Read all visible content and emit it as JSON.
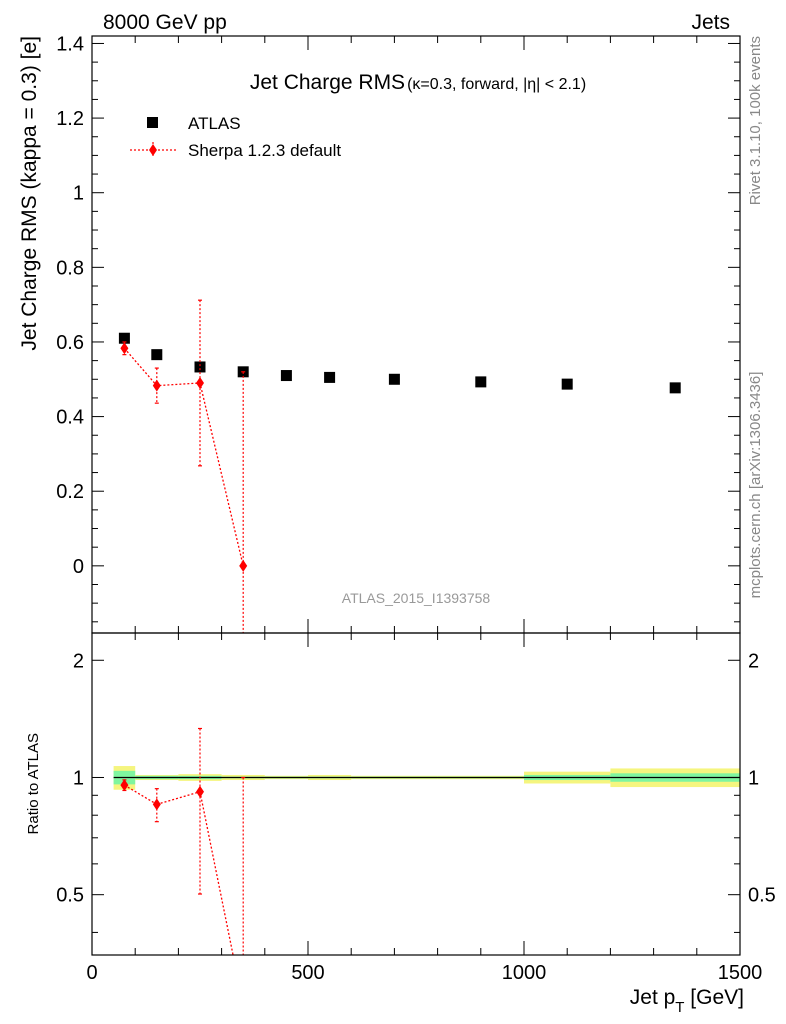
{
  "header": {
    "left": "8000 GeV pp",
    "right": "Jets"
  },
  "side_labels": {
    "rivet": "Rivet 3.1.10,  100k events",
    "mcplots": "mcplots.cern.ch [arXiv:1306.3436]"
  },
  "title_main": "Jet Charge RMS",
  "title_sub": "(κ=0.3, forward, |η| < 2.1)",
  "analysis_id": "ATLAS_2015_I1393758",
  "legend": {
    "atlas": "ATLAS",
    "sherpa": "Sherpa 1.2.3 default"
  },
  "colors": {
    "data": "#000000",
    "mc": "#ff0000",
    "band_green": "#7ff59f",
    "band_yellow": "#f5f57f"
  },
  "chart_data": [
    {
      "type": "scatter",
      "panel": "main",
      "ylabel": "Jet Charge RMS (kappa = 0.3) [e]",
      "xlim": [
        0,
        1500
      ],
      "ylim": [
        -0.18,
        1.42
      ],
      "y_ticks": [
        0,
        0.2,
        0.4,
        0.6,
        0.8,
        1,
        1.2,
        1.4
      ],
      "y_tick_labels": [
        "0",
        "0.2",
        "0.4",
        "0.6",
        "0.8",
        "1",
        "1.2",
        "1.4"
      ],
      "series": [
        {
          "name": "ATLAS",
          "x": [
            75,
            150,
            250,
            350,
            450,
            550,
            700,
            900,
            1100,
            1350
          ],
          "y": [
            0.61,
            0.566,
            0.533,
            0.52,
            0.51,
            0.505,
            0.5,
            0.493,
            0.487,
            0.477
          ],
          "xerr": [
            25,
            50,
            50,
            50,
            50,
            50,
            100,
            100,
            100,
            150
          ]
        },
        {
          "name": "Sherpa 1.2.3 default",
          "x": [
            75,
            150,
            250,
            350
          ],
          "y": [
            0.583,
            0.483,
            0.49,
            0.0
          ],
          "yerr_up": [
            0.017,
            0.047,
            0.222,
            0.52
          ],
          "yerr_down": [
            0.017,
            0.047,
            0.222,
            0.22
          ]
        }
      ]
    },
    {
      "type": "line",
      "panel": "ratio",
      "ylabel": "Ratio to ATLAS",
      "xlabel": "Jet p_T [GeV]",
      "xlim": [
        0,
        1500
      ],
      "ylim": [
        0.35,
        2.35
      ],
      "log_y": true,
      "y_ticks": [
        0.5,
        1,
        2
      ],
      "y_tick_labels": [
        "0.5",
        "1",
        "2"
      ],
      "x_ticks": [
        0,
        500,
        1000,
        1500
      ],
      "x_tick_labels": [
        "0",
        "500",
        "1000",
        "1500"
      ],
      "bands": [
        {
          "x0": 50,
          "x1": 100,
          "green": [
            0.96,
            1.04
          ],
          "yellow": [
            0.93,
            1.07
          ]
        },
        {
          "x0": 100,
          "x1": 200,
          "green": [
            0.99,
            1.01
          ],
          "yellow": [
            0.985,
            1.015
          ]
        },
        {
          "x0": 200,
          "x1": 300,
          "green": [
            0.99,
            1.01
          ],
          "yellow": [
            0.98,
            1.02
          ]
        },
        {
          "x0": 300,
          "x1": 400,
          "green": [
            0.995,
            1.005
          ],
          "yellow": [
            0.985,
            1.015
          ]
        },
        {
          "x0": 400,
          "x1": 500,
          "green": [
            0.995,
            1.005
          ],
          "yellow": [
            0.99,
            1.01
          ]
        },
        {
          "x0": 500,
          "x1": 600,
          "green": [
            0.995,
            1.005
          ],
          "yellow": [
            0.985,
            1.015
          ]
        },
        {
          "x0": 600,
          "x1": 800,
          "green": [
            0.995,
            1.005
          ],
          "yellow": [
            0.99,
            1.01
          ]
        },
        {
          "x0": 800,
          "x1": 1000,
          "green": [
            0.995,
            1.005
          ],
          "yellow": [
            0.99,
            1.01
          ]
        },
        {
          "x0": 1000,
          "x1": 1200,
          "green": [
            0.985,
            1.015
          ],
          "yellow": [
            0.965,
            1.035
          ]
        },
        {
          "x0": 1200,
          "x1": 1500,
          "green": [
            0.975,
            1.025
          ],
          "yellow": [
            0.945,
            1.055
          ]
        }
      ],
      "series": [
        {
          "name": "Sherpa 1.2.3 default",
          "x": [
            75,
            150,
            250,
            350
          ],
          "y": [
            0.956,
            0.853,
            0.919,
            0.0
          ],
          "yerr_up": [
            0.03,
            0.083,
            0.417,
            1.0
          ],
          "yerr_down": [
            0.03,
            0.083,
            0.417,
            0.42
          ]
        }
      ]
    }
  ]
}
